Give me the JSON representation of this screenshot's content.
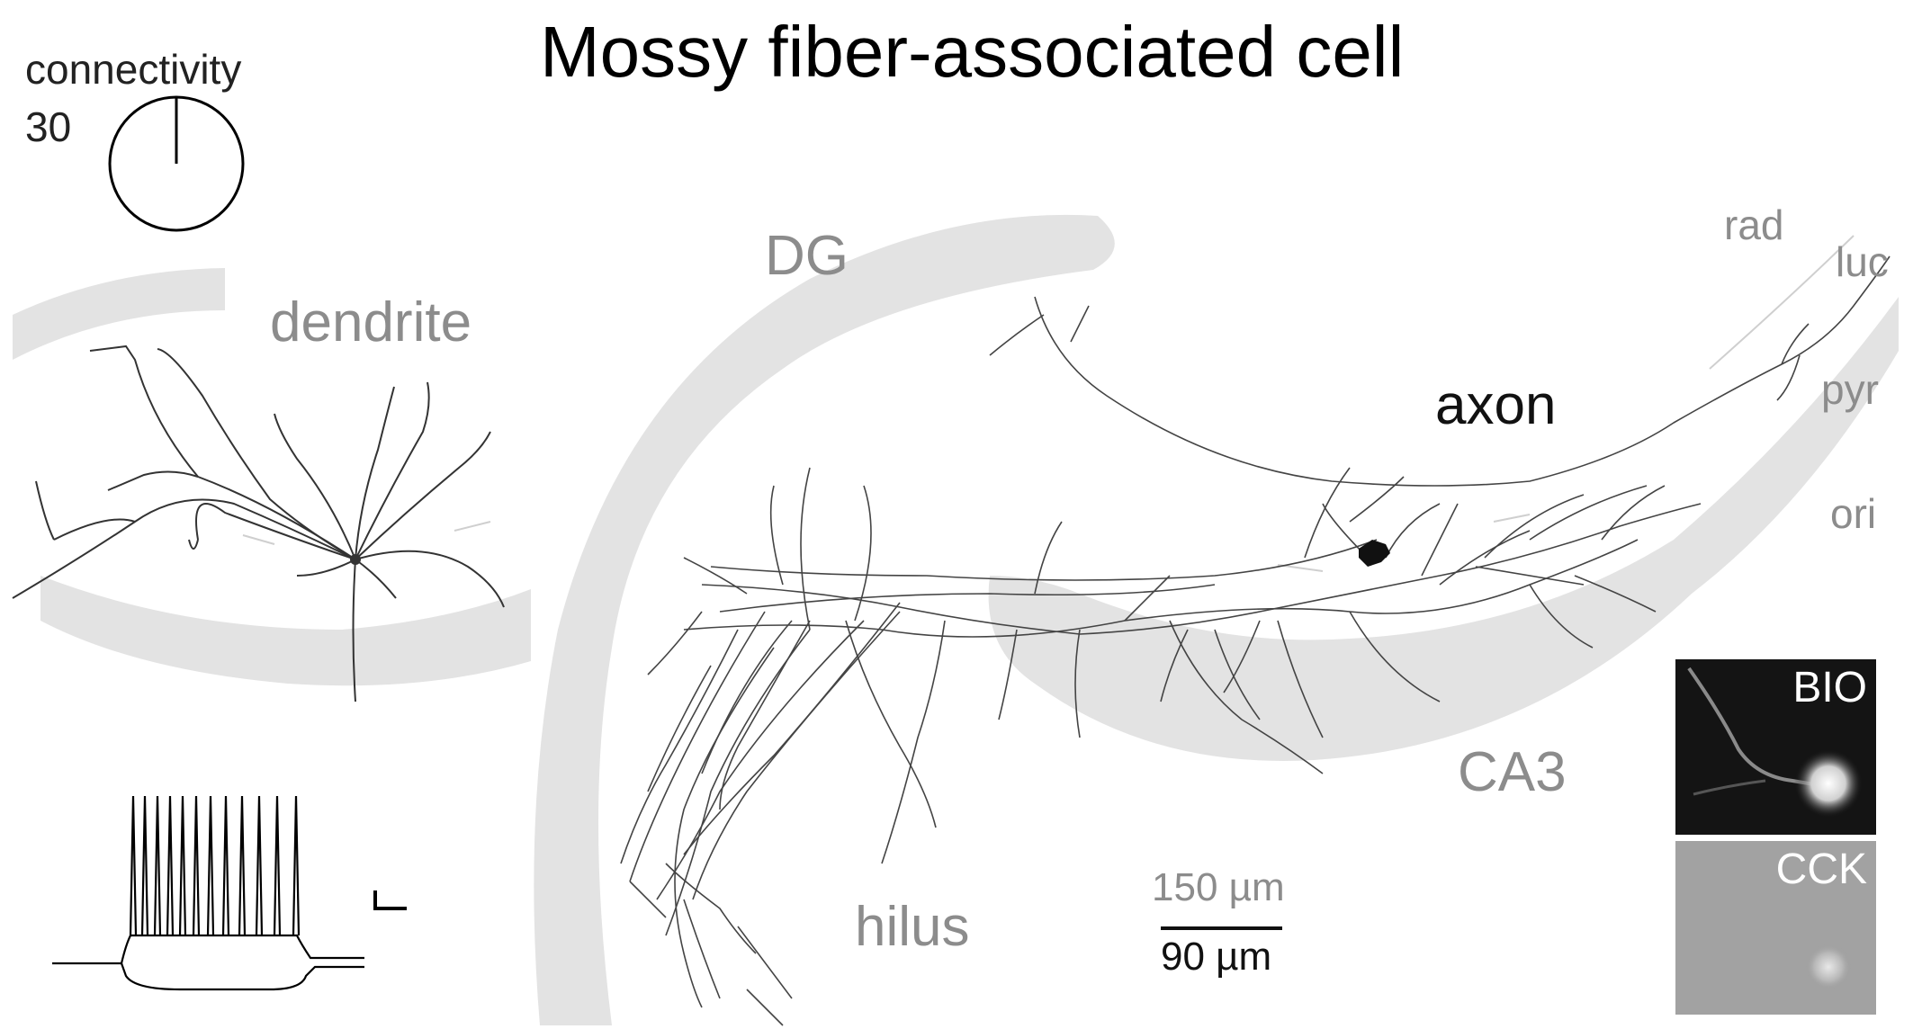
{
  "title": "Mossy fiber-associated cell",
  "connectivity": {
    "label": "connectivity",
    "value": "30"
  },
  "labels": {
    "dendrite": "dendrite",
    "dg": "DG",
    "axon": "axon",
    "ca3": "CA3",
    "hilus": "hilus",
    "rad": "rad",
    "luc": "luc",
    "pyr": "pyr",
    "ori": "ori"
  },
  "scale_bar": {
    "top": "150 µm",
    "bottom": "90 µm"
  },
  "micrographs": [
    {
      "label": "BIO"
    },
    {
      "label": "CCK"
    }
  ],
  "colors": {
    "region_fill": "#e3e3e3",
    "neurite": "#333333",
    "label_grey": "#8c8c8c"
  }
}
